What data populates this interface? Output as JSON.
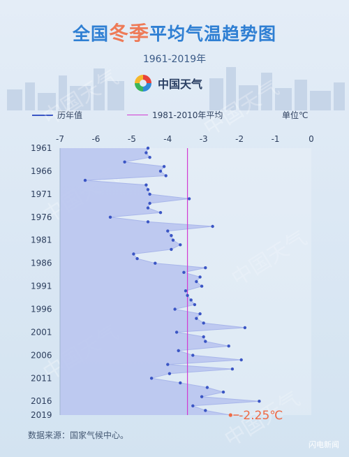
{
  "header": {
    "title_prefix": "全国",
    "title_highlight": "冬季",
    "title_suffix": "平均气温趋势图",
    "years": "1961-2019年",
    "logo_text": "中国天气"
  },
  "legend": {
    "series_label": "历年值",
    "mean_label": "1981-2010年平均",
    "unit_label": "单位℃"
  },
  "source": "数据来源：国家气候中心。",
  "brand": "闪电新闻",
  "watermark_text": "中国天气",
  "colors": {
    "series": "#3a55c4",
    "fill": "#b7c3ef",
    "mean_line": "#d23bd2",
    "highlight": "#ef6a45"
  },
  "chart_data": {
    "type": "area",
    "orientation": "horizontal",
    "title": "全国冬季平均气温趋势图",
    "subtitle": "1961-2019年",
    "unit": "℃",
    "xlim": [
      -7,
      0
    ],
    "x_ticks": [
      -7,
      -6,
      -5,
      -4,
      -3,
      -2,
      -1,
      0
    ],
    "y_ticks": [
      1961,
      1966,
      1971,
      1976,
      1981,
      1986,
      1991,
      1996,
      2001,
      2006,
      2011,
      2016,
      2019
    ],
    "mean_1981_2010": -3.45,
    "series": [
      {
        "name": "历年值",
        "years": [
          1961,
          1962,
          1963,
          1964,
          1965,
          1966,
          1967,
          1968,
          1969,
          1970,
          1971,
          1972,
          1973,
          1974,
          1975,
          1976,
          1977,
          1978,
          1979,
          1980,
          1981,
          1982,
          1983,
          1984,
          1985,
          1986,
          1987,
          1988,
          1989,
          1990,
          1991,
          1992,
          1993,
          1994,
          1995,
          1996,
          1997,
          1998,
          1999,
          2000,
          2001,
          2002,
          2003,
          2004,
          2005,
          2006,
          2007,
          2008,
          2009,
          2010,
          2011,
          2012,
          2013,
          2014,
          2015,
          2016,
          2017,
          2018,
          2019
        ],
        "values": [
          -4.55,
          -4.6,
          -4.5,
          -5.2,
          -4.1,
          -4.2,
          -4.05,
          -6.3,
          -4.6,
          -4.55,
          -4.5,
          -3.4,
          -4.5,
          -4.55,
          -4.2,
          -5.6,
          -4.55,
          -2.75,
          -4.0,
          -3.9,
          -3.85,
          -3.65,
          -3.9,
          -4.95,
          -4.85,
          -4.35,
          -2.95,
          -3.55,
          -3.1,
          -3.2,
          -3.05,
          -3.5,
          -3.45,
          -3.35,
          -3.25,
          -3.8,
          -3.1,
          -3.2,
          -3.0,
          -1.85,
          -3.75,
          -3.0,
          -2.95,
          -2.3,
          -3.7,
          -3.3,
          -1.95,
          -4.0,
          -2.2,
          -3.95,
          -4.45,
          -3.65,
          -2.9,
          -2.45,
          -3.05,
          -1.45,
          -3.3,
          -2.95,
          -2.25
        ]
      }
    ],
    "annotation": {
      "year": 2019,
      "text": "-2.25℃"
    }
  }
}
